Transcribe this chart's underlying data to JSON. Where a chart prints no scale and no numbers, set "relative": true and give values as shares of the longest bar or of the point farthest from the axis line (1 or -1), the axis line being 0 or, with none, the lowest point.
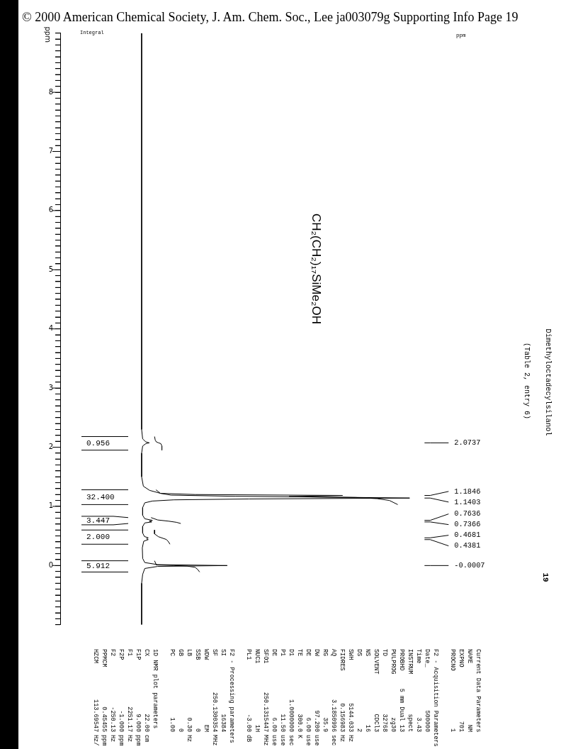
{
  "chart_data": {
    "type": "line",
    "orientation": "horizontal",
    "title": "Dimethyloctadecylsilanol",
    "subtitle": "(Table 2, entry 6)",
    "ylabel": "ppm",
    "relative": true,
    "marker": "none",
    "ylim": [
      -1,
      9
    ],
    "yticks": [
      {
        "value": 9,
        "label": null
      },
      {
        "value": 8.9,
        "label": null
      },
      {
        "value": 8.8,
        "label": null
      },
      {
        "value": 8.7,
        "label": null
      },
      {
        "value": 8.6,
        "label": null
      },
      {
        "value": 8.5,
        "label": null
      },
      {
        "value": 8.4,
        "label": null
      },
      {
        "value": 8.3,
        "label": null
      },
      {
        "value": 8.2,
        "label": null
      },
      {
        "value": 8.1,
        "label": null
      },
      8,
      {
        "value": 7.9,
        "label": null
      },
      {
        "value": 7.8,
        "label": null
      },
      {
        "value": 7.7,
        "label": null
      },
      {
        "value": 7.6,
        "label": null
      },
      {
        "value": 7.5,
        "label": null
      },
      {
        "value": 7.4,
        "label": null
      },
      {
        "value": 7.3,
        "label": null
      },
      {
        "value": 7.2,
        "label": null
      },
      {
        "value": 7.1,
        "label": null
      },
      7,
      {
        "value": 6.9,
        "label": null
      },
      {
        "value": 6.8,
        "label": null
      },
      {
        "value": 6.7,
        "label": null
      },
      {
        "value": 6.6,
        "label": null
      },
      {
        "value": 6.5,
        "label": null
      },
      {
        "value": 6.4,
        "label": null
      },
      {
        "value": 6.3,
        "label": null
      },
      {
        "value": 6.2,
        "label": null
      },
      {
        "value": 6.1,
        "label": null
      },
      6,
      {
        "value": 5.9,
        "label": null
      },
      {
        "value": 5.8,
        "label": null
      },
      {
        "value": 5.7,
        "label": null
      },
      {
        "value": 5.6,
        "label": null
      },
      {
        "value": 5.5,
        "label": null
      },
      {
        "value": 5.4,
        "label": null
      },
      {
        "value": 5.3,
        "label": null
      },
      {
        "value": 5.2,
        "label": null
      },
      {
        "value": 5.1,
        "label": null
      },
      5,
      {
        "value": 4.9,
        "label": null
      },
      {
        "value": 4.8,
        "label": null
      },
      {
        "value": 4.7,
        "label": null
      },
      {
        "value": 4.6,
        "label": null
      },
      {
        "value": 4.5,
        "label": null
      },
      {
        "value": 4.4,
        "label": null
      },
      {
        "value": 4.3,
        "label": null
      },
      {
        "value": 4.2,
        "label": null
      },
      {
        "value": 4.1,
        "label": null
      },
      4,
      {
        "value": 3.9,
        "label": null
      },
      {
        "value": 3.8,
        "label": null
      },
      {
        "value": 3.7,
        "label": null
      },
      {
        "value": 3.6,
        "label": null
      },
      {
        "value": 3.5,
        "label": null
      },
      {
        "value": 3.4,
        "label": null
      },
      {
        "value": 3.3,
        "label": null
      },
      {
        "value": 3.2,
        "label": null
      },
      {
        "value": 3.1,
        "label": null
      },
      3,
      {
        "value": 2.9,
        "label": null
      },
      {
        "value": 2.8,
        "label": null
      },
      {
        "value": 2.7,
        "label": null
      },
      {
        "value": 2.6,
        "label": null
      },
      {
        "value": 2.5,
        "label": null
      },
      {
        "value": 2.4,
        "label": null
      },
      {
        "value": 2.3,
        "label": null
      },
      {
        "value": 2.2,
        "label": null
      },
      {
        "value": 2.1,
        "label": null
      },
      2,
      {
        "value": 1.9,
        "label": null
      },
      {
        "value": 1.8,
        "label": null
      },
      {
        "value": 1.7,
        "label": null
      },
      {
        "value": 1.6,
        "label": null
      },
      {
        "value": 1.5,
        "label": null
      },
      {
        "value": 1.4,
        "label": null
      },
      {
        "value": 1.3,
        "label": null
      },
      {
        "value": 1.2,
        "label": null
      },
      {
        "value": 1.1,
        "label": null
      },
      1,
      {
        "value": 0.9,
        "label": null
      },
      {
        "value": 0.8,
        "label": null
      },
      {
        "value": 0.7,
        "label": null
      },
      {
        "value": 0.6,
        "label": null
      },
      {
        "value": 0.5,
        "label": null
      },
      {
        "value": 0.4,
        "label": null
      },
      {
        "value": 0.3,
        "label": null
      },
      {
        "value": 0.2,
        "label": null
      },
      {
        "value": 0.1,
        "label": null
      },
      0,
      {
        "value": -0.1,
        "label": null
      },
      {
        "value": -0.2,
        "label": null
      },
      {
        "value": -0.3,
        "label": null
      },
      {
        "value": -0.4,
        "label": null
      },
      {
        "value": -0.5,
        "label": null
      },
      {
        "value": -0.6,
        "label": null
      },
      {
        "value": -0.7,
        "label": null
      },
      {
        "value": -0.8,
        "label": null
      },
      {
        "value": -0.9,
        "label": null
      },
      {
        "value": -1,
        "label": null
      }
    ],
    "series": [
      {
        "color": "#000000",
        "x": [
          9,
          2.3,
          2.14,
          2.09,
          2.0737,
          2.06,
          2.02,
          1.9,
          1.5,
          1.34,
          1.27,
          1.22,
          1.2,
          1.1846,
          1.165,
          1.1403,
          1.125,
          1.11,
          1.09,
          1.06,
          0.98,
          0.85,
          0.79,
          0.7636,
          0.75,
          0.7366,
          0.72,
          0.66,
          0.55,
          0.49,
          0.4681,
          0.453,
          0.4381,
          0.41,
          0.3,
          0.12,
          0.05,
          0.015,
          -0.0007,
          -0.015,
          -0.05,
          -0.15,
          -0.3,
          -1
        ],
        "values": [
          0.233,
          0.233,
          0.236,
          0.245,
          0.255,
          0.245,
          0.236,
          0.233,
          0.233,
          0.238,
          0.256,
          0.287,
          0.386,
          0.808,
          0.655,
          1,
          0.54,
          0.325,
          0.264,
          0.242,
          0.236,
          0.236,
          0.242,
          0.264,
          0.255,
          0.262,
          0.242,
          0.236,
          0.236,
          0.241,
          0.252,
          0.247,
          0.252,
          0.239,
          0.235,
          0.236,
          0.242,
          0.279,
          0.478,
          0.279,
          0.242,
          0.236,
          0.233,
          0.233
        ]
      },
      {
        "color": "#000000",
        "x": [
          2.18,
          2.12,
          2.09,
          2.075,
          2.06,
          2.02,
          1.95
        ],
        "values": [
          0.27,
          0.272,
          0.275,
          0.281,
          0.288,
          0.291,
          0.291
        ]
      },
      {
        "color": "#000000",
        "x": [
          1.28,
          1.22,
          1.19,
          1.17,
          1.16,
          1.15,
          1.13,
          1.1,
          1.03
        ],
        "values": [
          0.274,
          0.287,
          0.317,
          0.501,
          0.693,
          0.846,
          0.907,
          0.942,
          0.966
        ]
      },
      {
        "color": "#000000",
        "x": [
          0.81,
          0.77,
          0.75,
          0.73,
          0.71
        ],
        "values": [
          0.26,
          0.279,
          0.31,
          0.333,
          0.345
        ]
      },
      {
        "color": "#000000",
        "x": [
          0.6,
          0.535,
          0.487,
          0.46,
          0.44,
          0.4,
          0.36
        ],
        "values": [
          0.27,
          0.27,
          0.281,
          0.294,
          0.304,
          0.31,
          0.314
        ]
      },
      {
        "color": "#000000",
        "x": [
          0.08,
          0.01,
          0,
          -0.01,
          -0.03,
          -0.07,
          -0.11
        ],
        "values": [
          0.27,
          0.275,
          0.325,
          0.363,
          0.386,
          0.394,
          0.399
        ]
      }
    ],
    "annotations": [
      "© 2000 American Chemical Society, J. Am. Chem. Soc., Lee ja003079g Supporting Info Page 19",
      "CH₂(CH₂)₁₇SiMe₂OH",
      "19",
      "Integral",
      "ppm",
      "2.0737",
      "1.1846",
      "1.1403",
      "0.7636",
      "0.7366",
      "0.4681",
      "0.4381",
      "-0.0007",
      "0.956",
      "32.400",
      "3.447",
      "2.000",
      "5.912",
      "Current Data Parameters",
      "NAME  NM",
      "EXPNO  701",
      "PROCNO  1",
      "F2 - Acquisition Parameters",
      "Date_  500000",
      "Time  3.43",
      "INSTRUM  spect",
      "PROBHD  5 mm Dual 13",
      "PULPROG  zg30",
      "TD  32768",
      "SOLVENT  CDCl3",
      "NS  16",
      "DS  2",
      "SWH  5144.033  Hz",
      "FIDRES  0.156983  Hz",
      "AQ  3.1850996  sec",
      "RG  35.9",
      "DW  97.200  use",
      "DE  6.00  use",
      "TE  300.0  K",
      "D1  1.0000000  sec",
      "P1  11.50  use",
      "DE  6.00  use",
      "SFO1  250.1315447  MHz",
      "NUC1  1H",
      "PL1  -3.00  dB",
      "F2 - Processing parameters",
      "SI  16384",
      "SF  250.1300354  MHz",
      "WDW  EM",
      "SSB  0",
      "LB  0.30  Hz",
      "GB  0",
      "PC  1.00",
      "1D NMR plot parameters",
      "CX  22.00  cm",
      "F1P  9.000  ppm",
      "F1  2251.17  Hz",
      "F2P  -1.000  ppm",
      "F2  -250.13  Hz",
      "PPMCM  0.45455  ppm",
      "HZCM  113.69547  Hz/"
    ]
  }
}
